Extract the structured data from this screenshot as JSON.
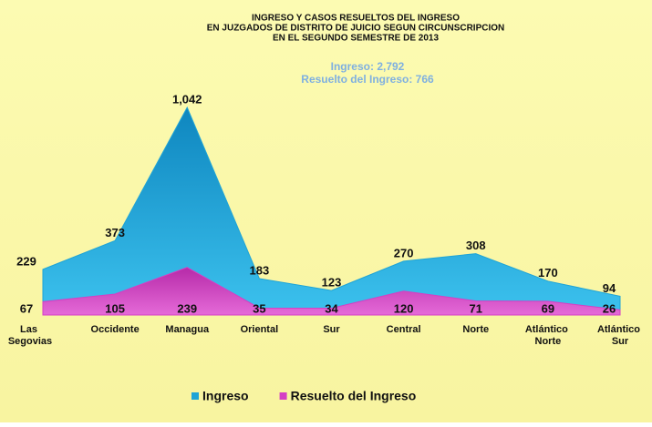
{
  "chart_data": {
    "type": "area",
    "title": [
      "INGRESO Y CASOS RESUELTOS DEL INGRESO",
      "EN JUZGADOS DE DISTRITO DE JUICIO SEGUN CIRCUNSCRIPCION",
      "EN EL SEGUNDO SEMESTRE DE 2013"
    ],
    "subtitle": [
      "Ingreso: 2,792",
      "Resuelto del Ingreso: 766"
    ],
    "categories": [
      "Las Segovias",
      "Occidente",
      "Managua",
      "Oriental",
      "Sur",
      "Central",
      "Norte",
      "Atlántico Norte",
      "Atlántico Sur"
    ],
    "series": [
      {
        "name": "Ingreso",
        "color": "#1fa4d6",
        "values": [
          229,
          373,
          1042,
          183,
          123,
          270,
          308,
          170,
          94
        ],
        "value_labels": [
          "229",
          "373",
          "1,042",
          "183",
          "123",
          "270",
          "308",
          "170",
          "94"
        ]
      },
      {
        "name": "Resuelto del Ingreso",
        "color": "#d43fc4",
        "values": [
          67,
          105,
          239,
          35,
          34,
          120,
          71,
          69,
          26
        ]
      }
    ],
    "legend": "bottom"
  }
}
